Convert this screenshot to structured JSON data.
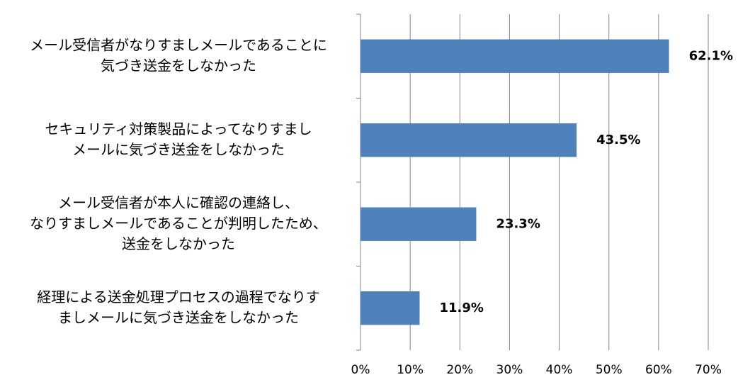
{
  "chart_data": {
    "type": "bar",
    "orientation": "horizontal",
    "categories": [
      [
        "メール受信者がなりすましメールであることに",
        "気づき送金をしなかった"
      ],
      [
        "セキュリティ対策製品によってなりすまし",
        "メールに気づき送金をしなかった"
      ],
      [
        "メール受信者が本人に確認の連絡し、",
        "なりすましメールであることが判明したため、",
        "送金をしなかった"
      ],
      [
        "経理による送金処理プロセスの過程でなりす",
        "ましメールに気づき送金をしなかった"
      ]
    ],
    "values": [
      62.1,
      43.5,
      23.3,
      11.9
    ],
    "value_labels": [
      "62.1%",
      "43.5%",
      "23.3%",
      "11.9%"
    ],
    "color": "#4f81bd",
    "xlim": [
      0,
      70
    ],
    "xticks": [
      {
        "value": 0,
        "label": "0%"
      },
      {
        "value": 10,
        "label": "10%"
      },
      {
        "value": 20,
        "label": "20%"
      },
      {
        "value": 30,
        "label": "30%"
      },
      {
        "value": 40,
        "label": "40%"
      },
      {
        "value": 50,
        "label": "50%"
      },
      {
        "value": 60,
        "label": "60%"
      },
      {
        "value": 70,
        "label": "70%"
      }
    ],
    "grid": true
  }
}
